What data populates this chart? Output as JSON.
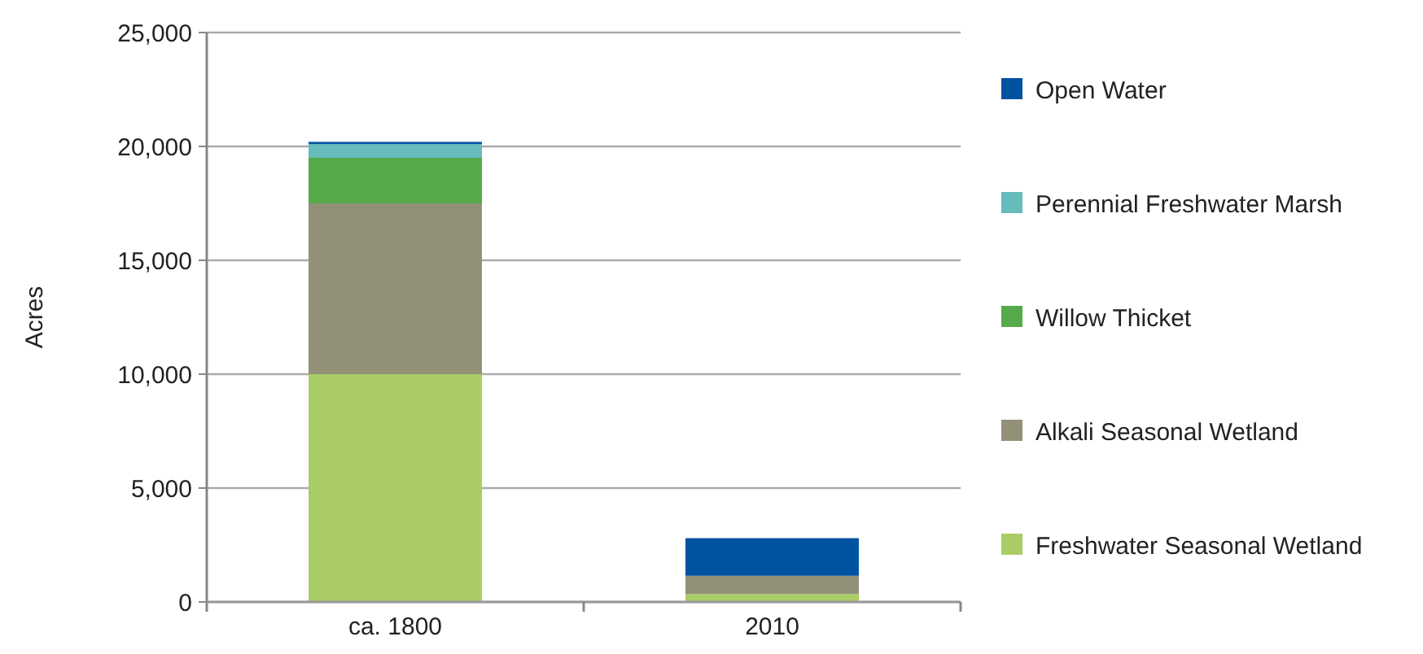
{
  "chart_data": {
    "type": "bar",
    "stacked": true,
    "ylabel": "Acres",
    "categories": [
      "ca. 1800",
      "2010"
    ],
    "series": [
      {
        "name": "Freshwater Seasonal Wetland",
        "color": "#aacc66",
        "values": [
          10000,
          350
        ]
      },
      {
        "name": "Alkali Seasonal Wetland",
        "color": "#929178",
        "values": [
          7500,
          800
        ]
      },
      {
        "name": "Willow Thicket",
        "color": "#55aa4a",
        "values": [
          2000,
          0
        ]
      },
      {
        "name": "Perennial Freshwater Marsh",
        "color": "#66bbbb",
        "values": [
          600,
          0
        ]
      },
      {
        "name": "Open Water",
        "color": "#0053a0",
        "values": [
          100,
          1650
        ]
      }
    ],
    "ylim": [
      0,
      25000
    ],
    "yticks": [
      {
        "value": 0,
        "label": "0"
      },
      {
        "value": 5000,
        "label": "5,000"
      },
      {
        "value": 10000,
        "label": "10,000"
      },
      {
        "value": 15000,
        "label": "15,000"
      },
      {
        "value": 20000,
        "label": "20,000"
      },
      {
        "value": 25000,
        "label": "25,000"
      }
    ],
    "grid": "y",
    "legend": "right"
  }
}
